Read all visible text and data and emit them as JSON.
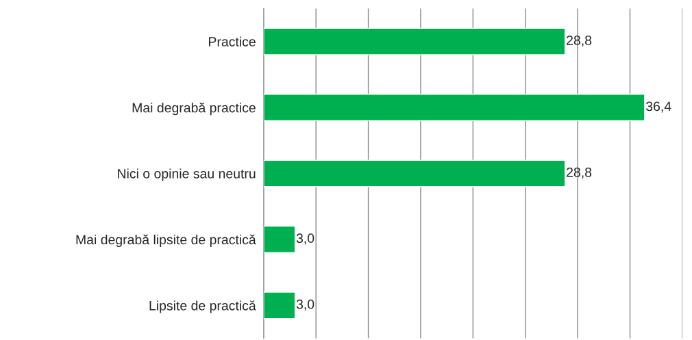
{
  "chart_data": {
    "type": "bar",
    "orientation": "horizontal",
    "categories": [
      "Practice",
      "Mai degrabă practice",
      "Nici o opinie sau neutru",
      "Mai degrabă lipsite de practică",
      "Lipsite de practică"
    ],
    "values": [
      28.8,
      36.4,
      28.8,
      3.0,
      3.0
    ],
    "value_labels": [
      "28,8",
      "36,4",
      "28,8",
      "3,0",
      "3,0"
    ],
    "color": "#00b050",
    "xlim": [
      0,
      40
    ],
    "xticks": [
      {
        "value": 0,
        "label": null
      },
      {
        "value": 5,
        "label": null
      },
      {
        "value": 10,
        "label": null
      },
      {
        "value": 15,
        "label": null
      },
      {
        "value": 20,
        "label": null
      },
      {
        "value": 25,
        "label": null
      },
      {
        "value": 30,
        "label": null
      },
      {
        "value": 35,
        "label": null
      },
      {
        "value": 40,
        "label": null
      }
    ],
    "tick_labels": "y",
    "grid": "x",
    "legend": false
  }
}
